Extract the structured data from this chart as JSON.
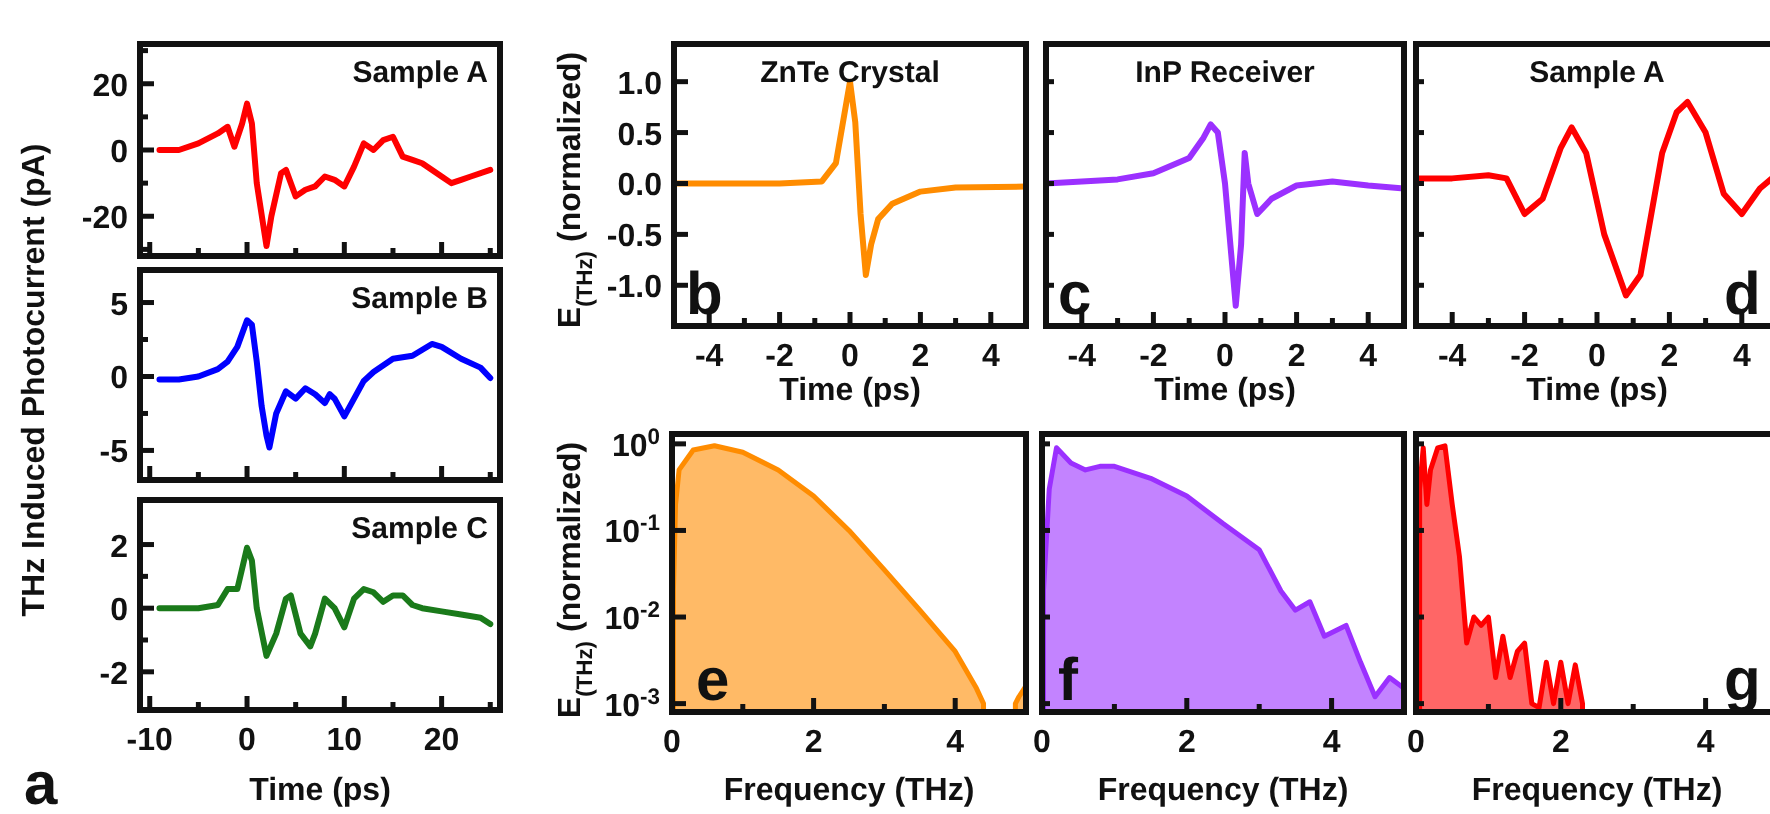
{
  "chart_data": [
    {
      "type": "line",
      "title": "Sample A",
      "xlim": [
        -11,
        26
      ],
      "ylim": [
        -32,
        32
      ],
      "xticks": [
        -10,
        {
          "value": -5,
          "label": null
        },
        0,
        {
          "value": 5,
          "label": null
        },
        10,
        {
          "value": 15,
          "label": null
        },
        20,
        {
          "value": 25,
          "label": null
        }
      ],
      "yticks": [
        {
          "value": -30,
          "label": null
        },
        -20,
        {
          "value": -10,
          "label": null
        },
        0,
        {
          "value": 10,
          "label": null
        },
        20,
        {
          "value": 30,
          "label": null
        }
      ],
      "tick_labels": "y",
      "series": [
        {
          "color": "#ff0000",
          "x": [
            -9,
            -7,
            -5,
            -3,
            -2,
            -1.3,
            -0.5,
            0,
            0.5,
            1,
            2,
            2.5,
            3.5,
            4,
            5,
            6,
            7,
            8,
            9,
            10,
            11,
            12,
            13,
            14,
            15,
            16,
            17,
            18,
            20,
            21,
            22,
            23,
            25
          ],
          "values": [
            0,
            0,
            2,
            5,
            7,
            1,
            8,
            14,
            8,
            -10,
            -29,
            -20,
            -7,
            -6,
            -14,
            -12,
            -11,
            -8,
            -9,
            -11,
            -5,
            2,
            0,
            3,
            4,
            -2,
            -3,
            -4,
            -8,
            -10,
            -9,
            -8,
            -6
          ]
        }
      ]
    },
    {
      "type": "line",
      "title": "Sample B",
      "ylabel": "THz Induced Photocurrent (pA)",
      "xlim": [
        -11,
        26
      ],
      "ylim": [
        -7,
        7.2
      ],
      "xticks": [
        -10,
        {
          "value": -5,
          "label": null
        },
        0,
        {
          "value": 5,
          "label": null
        },
        10,
        {
          "value": 15,
          "label": null
        },
        20,
        {
          "value": 25,
          "label": null
        }
      ],
      "yticks": [
        -5,
        {
          "value": -2.5,
          "label": null
        },
        0,
        {
          "value": 2.5,
          "label": null
        },
        5
      ],
      "tick_labels": "y",
      "series": [
        {
          "color": "#0000ff",
          "x": [
            -9,
            -7,
            -5,
            -3,
            -2,
            -1,
            0,
            0.5,
            1,
            1.5,
            2,
            2.3,
            3,
            4,
            5,
            6,
            7,
            8,
            8.5,
            9,
            10,
            11,
            12,
            13,
            15,
            17,
            19,
            20,
            22,
            24,
            25
          ],
          "values": [
            -0.2,
            -0.2,
            0,
            0.5,
            1,
            2,
            3.8,
            3.5,
            1,
            -2,
            -4,
            -4.8,
            -2.5,
            -1,
            -1.5,
            -0.8,
            -1.2,
            -1.8,
            -1.2,
            -1.5,
            -2.7,
            -1.5,
            -0.3,
            0.3,
            1.2,
            1.4,
            2.2,
            2,
            1.2,
            0.6,
            -0.1
          ]
        }
      ]
    },
    {
      "type": "line",
      "title": "Sample C",
      "xlabel": "Time (ps)",
      "annotations": [
        "a"
      ],
      "xlim": [
        -11,
        26
      ],
      "ylim": [
        -3.2,
        3.4
      ],
      "xticks": [
        -10,
        {
          "value": -5,
          "label": null
        },
        0,
        {
          "value": 5,
          "label": null
        },
        10,
        {
          "value": 15,
          "label": null
        },
        20,
        {
          "value": 25,
          "label": null
        }
      ],
      "yticks": [
        -2,
        {
          "value": -1,
          "label": null
        },
        0,
        {
          "value": 1,
          "label": null
        },
        2
      ],
      "series": [
        {
          "color": "#1a7a1a",
          "x": [
            -9,
            -7,
            -5,
            -3,
            -2,
            -1,
            0,
            0.5,
            1,
            2,
            3,
            4,
            4.5,
            5.5,
            6.5,
            7,
            8,
            9,
            10,
            11,
            12,
            13,
            14,
            15,
            16,
            17,
            18,
            20,
            22,
            24,
            25
          ],
          "values": [
            0,
            0,
            0,
            0.1,
            0.6,
            0.6,
            1.9,
            1.5,
            0,
            -1.5,
            -0.8,
            0.3,
            0.4,
            -0.8,
            -1.2,
            -0.8,
            0.3,
            0,
            -0.6,
            0.3,
            0.6,
            0.5,
            0.2,
            0.4,
            0.4,
            0.1,
            0,
            -0.1,
            -0.2,
            -0.3,
            -0.5
          ]
        }
      ]
    },
    {
      "type": "line",
      "title": "ZnTe Crystal",
      "xlabel": "Time (ps)",
      "ylabel": "E$_{(THz)}$ (normalized)",
      "annotations": [
        "b"
      ],
      "xlim": [
        -5,
        5
      ],
      "ylim": [
        -1.4,
        1.37
      ],
      "xticks": [
        -4,
        {
          "value": -3,
          "label": null
        },
        -2,
        {
          "value": -1,
          "label": null
        },
        0,
        {
          "value": 1,
          "label": null
        },
        2,
        {
          "value": 3,
          "label": null
        },
        4
      ],
      "yticks": [
        {
          "value": -1,
          "label": "-1.0"
        },
        -0.5,
        {
          "value": 0,
          "label": "0.0"
        },
        0.5,
        {
          "value": 1,
          "label": "1.0"
        }
      ],
      "series": [
        {
          "color": "#ff8c00",
          "x": [
            -5,
            -2,
            -0.8,
            -0.4,
            -0.1,
            0,
            0.15,
            0.3,
            0.45,
            0.6,
            0.8,
            1.2,
            2,
            3,
            5
          ],
          "values": [
            0,
            0,
            0.02,
            0.2,
            0.8,
            1,
            0.6,
            -0.3,
            -0.9,
            -0.6,
            -0.35,
            -0.2,
            -0.08,
            -0.04,
            -0.03
          ]
        }
      ]
    },
    {
      "type": "line",
      "title": "InP Receiver",
      "xlabel": "Time (ps)",
      "annotations": [
        "c"
      ],
      "xlim": [
        -5,
        5
      ],
      "ylim": [
        -1.4,
        1.37
      ],
      "xticks": [
        -4,
        {
          "value": -3,
          "label": null
        },
        -2,
        {
          "value": -1,
          "label": null
        },
        0,
        {
          "value": 1,
          "label": null
        },
        2,
        {
          "value": 3,
          "label": null
        },
        4
      ],
      "yticks": [
        {
          "value": -1,
          "label": null
        },
        {
          "value": -0.5,
          "label": null
        },
        {
          "value": 0,
          "label": null
        },
        {
          "value": 0.5,
          "label": null
        },
        {
          "value": 1,
          "label": null
        }
      ],
      "tick_labels": "x",
      "series": [
        {
          "color": "#9b30ff",
          "x": [
            -5,
            -3,
            -2,
            -1,
            -0.6,
            -0.4,
            -0.2,
            0,
            0.2,
            0.3,
            0.45,
            0.55,
            0.65,
            0.9,
            1.3,
            2,
            3,
            4,
            5
          ],
          "values": [
            0,
            0.04,
            0.1,
            0.25,
            0.45,
            0.58,
            0.5,
            0,
            -0.8,
            -1.2,
            -0.6,
            0.3,
            0,
            -0.3,
            -0.15,
            -0.02,
            0.02,
            -0.02,
            -0.05
          ]
        }
      ]
    },
    {
      "type": "line",
      "title": "Sample A",
      "xlabel": "Time (ps)",
      "annotations": [
        "d"
      ],
      "xlim": [
        -5,
        5
      ],
      "ylim": [
        -1.4,
        1.37
      ],
      "xticks": [
        -4,
        {
          "value": -3,
          "label": null
        },
        -2,
        {
          "value": -1,
          "label": null
        },
        0,
        {
          "value": 1,
          "label": null
        },
        2,
        {
          "value": 3,
          "label": null
        },
        4
      ],
      "yticks": [
        {
          "value": -1,
          "label": null
        },
        {
          "value": -0.5,
          "label": null
        },
        {
          "value": 0,
          "label": null
        },
        {
          "value": 0.5,
          "label": null
        },
        {
          "value": 1,
          "label": null
        }
      ],
      "tick_labels": "x",
      "series": [
        {
          "color": "#ff0000",
          "x": [
            -5,
            -4,
            -3,
            -2.5,
            -2,
            -1.5,
            -1,
            -0.7,
            -0.3,
            0.2,
            0.8,
            1.2,
            1.8,
            2.2,
            2.5,
            3,
            3.5,
            4,
            4.5,
            5
          ],
          "values": [
            0.05,
            0.05,
            0.08,
            0.05,
            -0.3,
            -0.15,
            0.35,
            0.55,
            0.3,
            -0.5,
            -1.1,
            -0.9,
            0.3,
            0.7,
            0.8,
            0.5,
            -0.1,
            -0.3,
            -0.05,
            0.1
          ]
        }
      ]
    },
    {
      "type": "area",
      "xlabel": "Frequency (THz)",
      "ylabel": "E$_{(THz)}$ (normalized)",
      "annotations": [
        "e"
      ],
      "log": "y",
      "xlim": [
        0,
        5
      ],
      "ylim": [
        0.0008,
        1.3
      ],
      "xticks": [
        0,
        {
          "value": 1,
          "label": null
        },
        2,
        {
          "value": 3,
          "label": null
        },
        4
      ],
      "yticks": [
        {
          "value": 0.001,
          "label": "10$^{-3}$"
        },
        {
          "value": 0.01,
          "label": "10$^{-2}$"
        },
        {
          "value": 0.1,
          "label": "10$^{-1}$"
        },
        {
          "value": 1,
          "label": "10$^{0}$"
        }
      ],
      "series": [
        {
          "color": "#ff8c00",
          "x": [
            0.02,
            0.05,
            0.1,
            0.3,
            0.6,
            1,
            1.5,
            2,
            2.5,
            3,
            3.5,
            4,
            4.3,
            4.4
          ],
          "values": [
            0.02,
            0.2,
            0.5,
            0.85,
            0.95,
            0.8,
            0.5,
            0.25,
            0.1,
            0.035,
            0.012,
            0.004,
            0.0015,
            0.001
          ]
        },
        {
          "color": "#ff8c00",
          "x": [
            4.85,
            4.9,
            5
          ],
          "values": [
            0.001,
            0.0012,
            0.0016
          ]
        }
      ]
    },
    {
      "type": "area",
      "xlabel": "Frequency (THz)",
      "annotations": [
        "f"
      ],
      "log": "y",
      "xlim": [
        0,
        5
      ],
      "ylim": [
        0.0008,
        1.3
      ],
      "xticks": [
        0,
        {
          "value": 1,
          "label": null
        },
        2,
        {
          "value": 3,
          "label": null
        },
        4
      ],
      "yticks": [
        {
          "value": 0.001,
          "label": null
        },
        {
          "value": 0.01,
          "label": null
        },
        {
          "value": 0.1,
          "label": null
        },
        {
          "value": 1,
          "label": null
        }
      ],
      "tick_labels": "x",
      "series": [
        {
          "color": "#9b30ff",
          "x": [
            0.02,
            0.1,
            0.2,
            0.4,
            0.6,
            0.8,
            1,
            1.5,
            2,
            2.5,
            3,
            3.3,
            3.5,
            3.7,
            3.9,
            4.2,
            4.4,
            4.6,
            4.8,
            5
          ],
          "values": [
            0.02,
            0.3,
            0.9,
            0.6,
            0.5,
            0.55,
            0.55,
            0.4,
            0.25,
            0.12,
            0.06,
            0.02,
            0.012,
            0.015,
            0.006,
            0.008,
            0.003,
            0.0012,
            0.002,
            0.0015
          ]
        }
      ]
    },
    {
      "type": "area",
      "xlabel": "Frequency (THz)",
      "annotations": [
        "g"
      ],
      "log": "y",
      "xlim": [
        0,
        5
      ],
      "ylim": [
        0.0008,
        1.3
      ],
      "xticks": [
        0,
        {
          "value": 1,
          "label": null
        },
        2,
        {
          "value": 3,
          "label": null
        },
        4
      ],
      "yticks": [
        {
          "value": 0.001,
          "label": null
        },
        {
          "value": 0.01,
          "label": null
        },
        {
          "value": 0.1,
          "label": null
        },
        {
          "value": 1,
          "label": null
        }
      ],
      "tick_labels": "x",
      "series": [
        {
          "color": "#ff0000",
          "x": [
            0.05,
            0.1,
            0.15,
            0.2,
            0.3,
            0.4,
            0.5,
            0.6,
            0.7,
            0.8,
            0.9,
            1,
            1.1,
            1.2,
            1.3,
            1.4,
            1.5,
            1.6,
            1.7,
            1.8,
            1.9,
            2,
            2.1,
            2.2,
            2.3
          ],
          "values": [
            0.3,
            0.9,
            0.2,
            0.5,
            0.9,
            0.95,
            0.2,
            0.05,
            0.005,
            0.01,
            0.008,
            0.01,
            0.002,
            0.006,
            0.002,
            0.004,
            0.005,
            0.001,
            0.0009,
            0.003,
            0.001,
            0.003,
            0.001,
            0.0028,
            0.001
          ]
        }
      ]
    }
  ]
}
